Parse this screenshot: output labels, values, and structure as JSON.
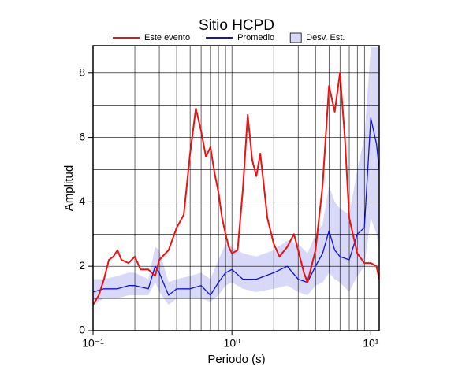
{
  "chart_data": {
    "type": "line",
    "title": "Sitio HCPD",
    "x_label": "Periodo (s)",
    "y_label": "Amplitud",
    "x_scale": "log",
    "grid": true,
    "legend_position": "top",
    "xlim": [
      0.1,
      11.5
    ],
    "ylim": [
      0,
      8.85
    ],
    "xticks": [
      {
        "value": 0.1,
        "label": "10⁻¹"
      },
      {
        "value": 1,
        "label": "10⁰"
      },
      {
        "value": 10,
        "label": "10¹"
      }
    ],
    "xminor_ticks": [
      0.2,
      0.3,
      0.4,
      0.5,
      0.6,
      0.7,
      0.8,
      0.9,
      2,
      3,
      4,
      5,
      6,
      7,
      8,
      9
    ],
    "yticks": [
      0,
      2,
      4,
      6,
      8
    ],
    "yminor_ticks": [
      1,
      3,
      5,
      7
    ],
    "band": {
      "name": "Desv. Est.",
      "color": "#d8d8f8",
      "x": [
        0.1,
        0.12,
        0.15,
        0.18,
        0.2,
        0.25,
        0.28,
        0.3,
        0.35,
        0.4,
        0.5,
        0.6,
        0.7,
        0.8,
        0.9,
        1.0,
        1.2,
        1.5,
        2.0,
        2.5,
        3.0,
        3.5,
        4.0,
        4.5,
        5.0,
        5.5,
        6.0,
        7.0,
        8.0,
        9.0,
        10,
        11,
        11.5
      ],
      "lower": [
        0.8,
        1.0,
        1.0,
        1.1,
        1.1,
        1.1,
        1.5,
        1.2,
        0.8,
        1.0,
        1.0,
        1.0,
        0.9,
        1.1,
        1.4,
        1.5,
        1.3,
        1.2,
        1.3,
        1.4,
        1.2,
        1.1,
        1.4,
        1.5,
        1.8,
        1.6,
        1.5,
        1.2,
        1.7,
        2.0,
        3.5,
        3.0,
        2.5
      ],
      "upper": [
        1.6,
        1.6,
        1.7,
        1.8,
        1.8,
        1.6,
        2.6,
        2.5,
        1.5,
        1.6,
        1.7,
        1.8,
        1.6,
        2.2,
        2.7,
        2.6,
        2.4,
        2.3,
        2.5,
        2.8,
        2.7,
        2.4,
        3.0,
        3.3,
        4.5,
        4.0,
        3.8,
        3.6,
        5.0,
        6.0,
        8.8,
        8.8,
        8.8
      ]
    },
    "series": [
      {
        "name": "Este evento",
        "color": "#ee1111",
        "x": [
          0.1,
          0.11,
          0.12,
          0.13,
          0.14,
          0.15,
          0.16,
          0.18,
          0.2,
          0.22,
          0.25,
          0.28,
          0.3,
          0.35,
          0.4,
          0.45,
          0.5,
          0.55,
          0.6,
          0.65,
          0.7,
          0.75,
          0.8,
          0.85,
          0.9,
          0.95,
          1.0,
          1.1,
          1.2,
          1.3,
          1.4,
          1.5,
          1.6,
          1.7,
          1.8,
          2.0,
          2.2,
          2.5,
          2.8,
          3.0,
          3.3,
          3.5,
          4.0,
          4.5,
          5.0,
          5.5,
          6.0,
          6.5,
          7.0,
          8.0,
          9.0,
          10,
          11,
          11.5
        ],
        "values": [
          0.8,
          1.1,
          1.6,
          2.2,
          2.3,
          2.5,
          2.2,
          2.1,
          2.3,
          1.9,
          1.9,
          1.7,
          2.2,
          2.5,
          3.2,
          3.6,
          5.5,
          6.9,
          6.2,
          5.4,
          5.7,
          4.9,
          4.3,
          3.5,
          3.0,
          2.6,
          2.4,
          2.5,
          4.4,
          6.7,
          5.3,
          4.8,
          5.5,
          4.5,
          3.5,
          2.7,
          2.3,
          2.6,
          3.0,
          2.5,
          1.8,
          1.5,
          2.5,
          4.5,
          7.6,
          6.8,
          8.0,
          6.0,
          3.5,
          2.4,
          2.1,
          2.1,
          2.0,
          1.6
        ]
      },
      {
        "name": "Promedio",
        "color": "#1111dd",
        "x": [
          0.1,
          0.12,
          0.15,
          0.18,
          0.2,
          0.25,
          0.28,
          0.3,
          0.35,
          0.4,
          0.5,
          0.6,
          0.7,
          0.8,
          0.9,
          1.0,
          1.2,
          1.5,
          2.0,
          2.5,
          3.0,
          3.5,
          4.0,
          4.5,
          5.0,
          5.5,
          6.0,
          7.0,
          8.0,
          9.0,
          10,
          11,
          11.5
        ],
        "values": [
          1.2,
          1.3,
          1.3,
          1.4,
          1.4,
          1.3,
          2.0,
          1.8,
          1.1,
          1.3,
          1.3,
          1.4,
          1.1,
          1.5,
          1.8,
          1.9,
          1.6,
          1.6,
          1.8,
          2.0,
          1.6,
          1.5,
          2.0,
          2.4,
          3.1,
          2.5,
          2.3,
          2.2,
          3.0,
          3.2,
          6.6,
          5.8,
          5.0
        ]
      }
    ]
  }
}
